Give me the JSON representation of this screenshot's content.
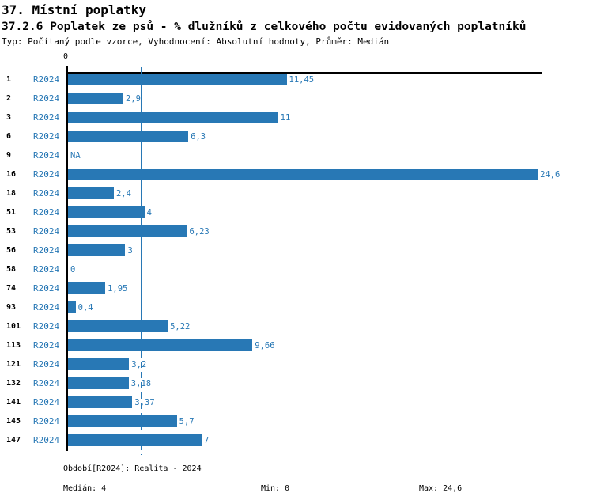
{
  "header": {
    "title": "37. Místní poplatky",
    "subtitle": "37.2.6 Poplatek ze psů - % dlužníků z celkového počtu evidovaných poplatníků",
    "meta": "Typ: Počítaný podle vzorce, Vyhodnocení: Absolutní hodnoty, Průměr: Medián"
  },
  "chart_data": {
    "type": "bar",
    "orientation": "horizontal",
    "title": "37.2.6 Poplatek ze psů - % dlužníků z celkového počtu evidovaných poplatníků",
    "categories": [
      "1",
      "2",
      "3",
      "6",
      "9",
      "16",
      "18",
      "51",
      "53",
      "56",
      "58",
      "74",
      "93",
      "101",
      "113",
      "121",
      "132",
      "141",
      "145",
      "147"
    ],
    "series": [
      {
        "name": "R2024",
        "values": [
          11.45,
          2.9,
          11,
          6.3,
          null,
          24.6,
          2.4,
          4,
          6.23,
          3,
          0,
          1.95,
          0.4,
          5.22,
          9.66,
          3.2,
          3.18,
          3.37,
          5.7,
          7
        ],
        "value_labels": [
          "11,45",
          "2,9",
          "11",
          "6,3",
          "NA",
          "24,6",
          "2,4",
          "4",
          "6,23",
          "3",
          "0",
          "1,95",
          "0,4",
          "5,22",
          "9,66",
          "3,2",
          "3,18",
          "3,37",
          "5,7",
          "7"
        ]
      }
    ],
    "xlim": [
      0,
      24.9
    ],
    "x_tick_labels": [
      "0"
    ],
    "median_line_value": 4,
    "bar_color": "#2878b5",
    "label_color": "#2878b5",
    "axis_color": "#000000",
    "grid": false,
    "legend_position": "none"
  },
  "footer": {
    "period": "Období[R2024]: Realita - 2024",
    "median": "Medián: 4",
    "min": "Min: 0",
    "max": "Max: 24,6"
  }
}
